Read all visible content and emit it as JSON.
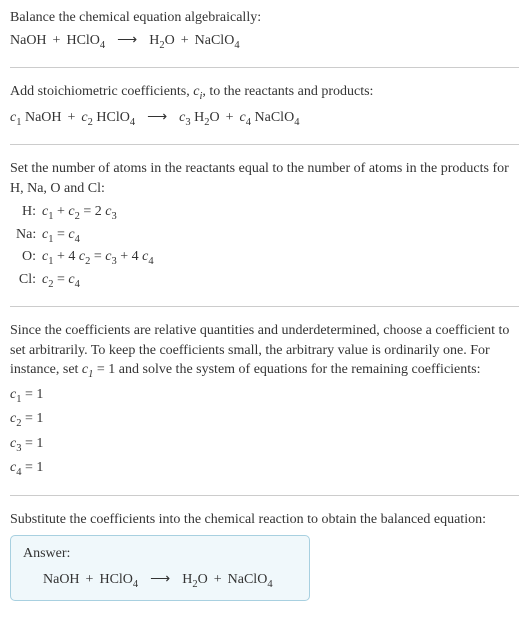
{
  "s1": {
    "intro": "Balance the chemical equation algebraically:",
    "lhs1": "NaOH",
    "plus": "+",
    "lhs2": "HClO",
    "lhs2sub": "4",
    "arrow": "⟶",
    "rhs1": "H",
    "rhs1sub": "2",
    "rhs1b": "O",
    "rhs2": "NaClO",
    "rhs2sub": "4"
  },
  "s2": {
    "intro_a": "Add stoichiometric coefficients, ",
    "ci": "c",
    "ci_sub": "i",
    "intro_b": ", to the reactants and products:",
    "c1": "c",
    "c1s": "1",
    "t1": " NaOH",
    "c2": "c",
    "c2s": "2",
    "t2": " HClO",
    "t2sub": "4",
    "arrow": "⟶",
    "c3": "c",
    "c3s": "3",
    "t3": " H",
    "t3sub": "2",
    "t3b": "O",
    "c4": "c",
    "c4s": "4",
    "t4": " NaClO",
    "t4sub": "4"
  },
  "s3": {
    "intro": "Set the number of atoms in the reactants equal to the number of atoms in the products for H, Na, O and Cl:",
    "rows": [
      {
        "el": "H:",
        "eq_parts": [
          "c",
          "1",
          " + ",
          "c",
          "2",
          " = 2 ",
          "c",
          "3"
        ]
      },
      {
        "el": "Na:",
        "eq_parts": [
          "c",
          "1",
          " = ",
          "c",
          "4"
        ]
      },
      {
        "el": "O:",
        "eq_parts": [
          "c",
          "1",
          " + 4 ",
          "c",
          "2",
          " = ",
          "c",
          "3",
          " + 4 ",
          "c",
          "4"
        ]
      },
      {
        "el": "Cl:",
        "eq_parts": [
          "c",
          "2",
          " = ",
          "c",
          "4"
        ]
      }
    ]
  },
  "s4": {
    "intro_a": "Since the coefficients are relative quantities and underdetermined, choose a coefficient to set arbitrarily. To keep the coefficients small, the arbitrary value is ordinarily one. For instance, set ",
    "c1": "c",
    "c1s": "1",
    "intro_b": " = 1 and solve the system of equations for the remaining coefficients:",
    "lines": [
      {
        "c": "c",
        "s": "1",
        "v": " = 1"
      },
      {
        "c": "c",
        "s": "2",
        "v": " = 1"
      },
      {
        "c": "c",
        "s": "3",
        "v": " = 1"
      },
      {
        "c": "c",
        "s": "4",
        "v": " = 1"
      }
    ]
  },
  "s5": {
    "intro": "Substitute the coefficients into the chemical reaction to obtain the balanced equation:",
    "answer_label": "Answer:",
    "lhs1": "NaOH",
    "plus": "+",
    "lhs2": "HClO",
    "lhs2sub": "4",
    "arrow": "⟶",
    "rhs1": "H",
    "rhs1sub": "2",
    "rhs1b": "O",
    "rhs2": "NaClO",
    "rhs2sub": "4"
  }
}
